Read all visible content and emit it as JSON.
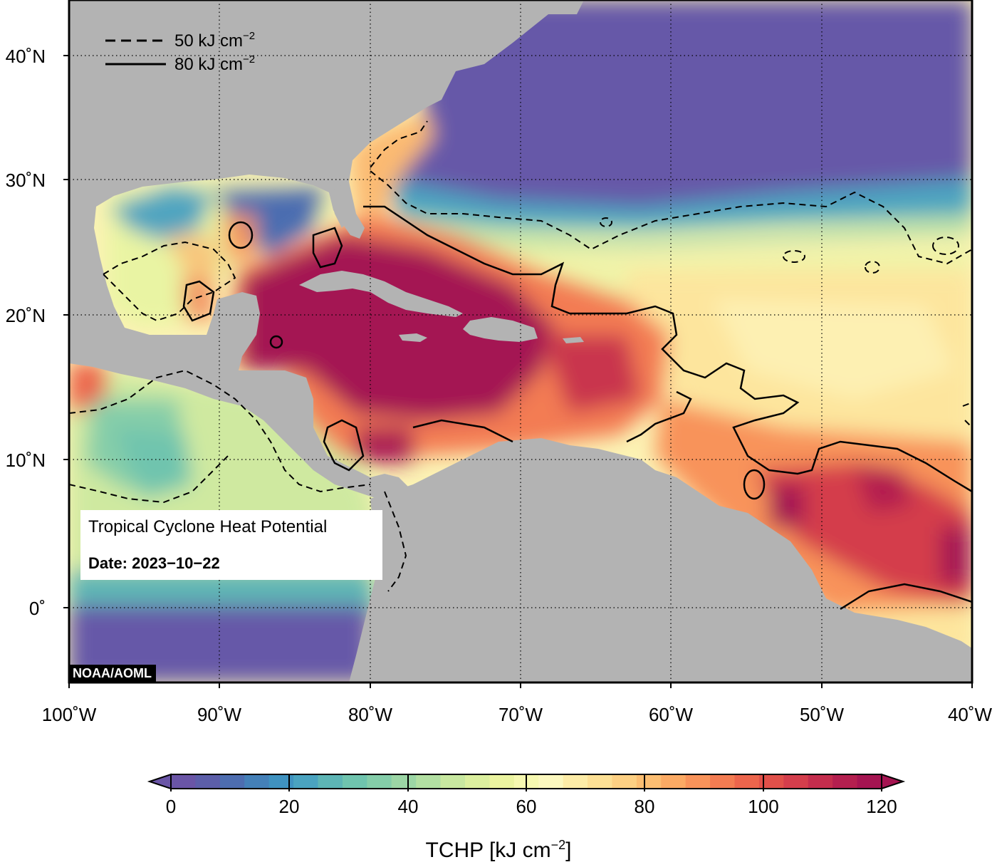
{
  "legend": {
    "dashed_label": "50 kJ cm",
    "solid_label": "80 kJ cm",
    "exponent": "−2"
  },
  "info": {
    "title": "Tropical Cyclone Heat Potential",
    "date": "Date: 2023−10−22"
  },
  "credit": "NOAA/AOML",
  "axes": {
    "lon_ticks": [
      "100˚W",
      "90˚W",
      "80˚W",
      "70˚W",
      "60˚W",
      "50˚W",
      "40˚W"
    ],
    "lat_ticks": [
      "40˚N",
      "30˚N",
      "20˚N",
      "10˚N",
      "0˚"
    ]
  },
  "colorbar": {
    "tick_labels": [
      "0",
      "20",
      "40",
      "60",
      "80",
      "100",
      "120"
    ],
    "label_main": "TCHP [kJ cm",
    "label_exp": "−2",
    "label_close": "]",
    "colors": [
      "#6a55a6",
      "#5c5ea9",
      "#4d6db0",
      "#4480b8",
      "#3f92c0",
      "#4aa3c0",
      "#5db5b5",
      "#6fc4ae",
      "#84cda9",
      "#9cd6a5",
      "#b2dfa2",
      "#c8e8a0",
      "#dbef9e",
      "#ebf4a0",
      "#f6f8b0",
      "#fcf8bf",
      "#fdeca7",
      "#fde095",
      "#fdd083",
      "#fcbe72",
      "#fbaa64",
      "#f8935a",
      "#f37c52",
      "#ec654c",
      "#e0504a",
      "#d43e4c",
      "#c42d4d",
      "#b41f4f",
      "#a51451"
    ]
  },
  "colors": {
    "land": "#b3b3b3",
    "ocean_cold": "#6659a8",
    "ocean_hot": "#a41352"
  }
}
